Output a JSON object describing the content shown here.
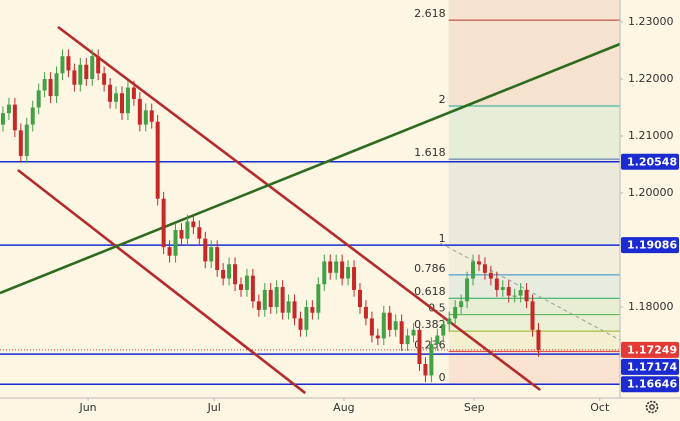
{
  "chart_data": {
    "type": "candlestick",
    "up_color": "#43a047",
    "down_color": "#c62828",
    "xlim": [
      -0.5,
      103.7
    ],
    "xticks": [
      {
        "value": 14.3,
        "label": "Jun"
      },
      {
        "value": 35.5,
        "label": "Jul"
      },
      {
        "value": 57.3,
        "label": "Aug"
      },
      {
        "value": 79.2,
        "label": "Sep"
      },
      {
        "value": 100.3,
        "label": "Oct"
      }
    ],
    "ylim": [
      1.16404,
      1.23386
    ],
    "yticks": [
      {
        "value": 1.23,
        "label": "1.23000"
      },
      {
        "value": 1.22,
        "label": "1.22000"
      },
      {
        "value": 1.21,
        "label": "1.21000"
      },
      {
        "value": 1.2,
        "label": "1.20000"
      },
      {
        "value": 1.18,
        "label": "1.18000"
      }
    ],
    "open": [
      1.212,
      1.214,
      1.2155,
      1.211,
      1.2065,
      1.212,
      1.215,
      1.218,
      1.22,
      1.217,
      1.221,
      1.224,
      1.2215,
      1.219,
      1.2225,
      1.22,
      1.224,
      1.221,
      1.219,
      1.216,
      1.2175,
      1.214,
      1.2185,
      1.2165,
      1.212,
      1.2145,
      1.2125,
      1.199,
      1.1905,
      1.189,
      1.1935,
      1.192,
      1.195,
      1.194,
      1.192,
      1.188,
      1.1905,
      1.1865,
      1.185,
      1.1875,
      1.184,
      1.183,
      1.1855,
      1.181,
      1.1795,
      1.183,
      1.18,
      1.1835,
      1.179,
      1.181,
      1.178,
      1.176,
      1.18,
      1.179,
      1.184,
      1.188,
      1.186,
      1.188,
      1.185,
      1.187,
      1.183,
      1.18,
      1.178,
      1.175,
      1.1745,
      1.179,
      1.176,
      1.1775,
      1.1735,
      1.175,
      1.176,
      1.17,
      1.168,
      1.1735,
      1.175,
      1.177,
      1.178,
      1.18,
      1.181,
      1.185,
      1.188,
      1.1875,
      1.186,
      1.185,
      1.183,
      1.1835,
      1.182,
      1.182,
      1.183,
      1.181,
      1.176
    ],
    "high": [
      1.2152,
      1.2167,
      1.2167,
      1.2122,
      1.2132,
      1.2162,
      1.2192,
      1.2212,
      1.2212,
      1.2222,
      1.2252,
      1.2252,
      1.2227,
      1.2237,
      1.2237,
      1.2252,
      1.2252,
      1.2222,
      1.2202,
      1.2187,
      1.2187,
      1.2197,
      1.2197,
      1.2177,
      1.2157,
      1.2157,
      1.2137,
      1.2002,
      1.1917,
      1.1947,
      1.1947,
      1.1962,
      1.1962,
      1.1952,
      1.1932,
      1.1917,
      1.1917,
      1.1877,
      1.1887,
      1.1887,
      1.1852,
      1.1867,
      1.1867,
      1.1822,
      1.1842,
      1.1842,
      1.1847,
      1.1847,
      1.1822,
      1.1822,
      1.1792,
      1.1812,
      1.1812,
      1.1852,
      1.1892,
      1.1892,
      1.1892,
      1.1892,
      1.1882,
      1.1882,
      1.1842,
      1.1812,
      1.1792,
      1.1762,
      1.1802,
      1.1802,
      1.1787,
      1.1787,
      1.1762,
      1.1772,
      1.1772,
      1.1712,
      1.1747,
      1.1762,
      1.1782,
      1.1792,
      1.1812,
      1.1822,
      1.1862,
      1.1892,
      1.1892,
      1.1887,
      1.1872,
      1.1862,
      1.1847,
      1.1847,
      1.1832,
      1.1842,
      1.1842,
      1.1822,
      1.1772
    ],
    "low": [
      1.2108,
      1.2128,
      1.2098,
      1.2053,
      1.2053,
      1.2108,
      1.2138,
      1.2168,
      1.2158,
      1.2158,
      1.2198,
      1.2203,
      1.2178,
      1.2178,
      1.2188,
      1.2188,
      1.2198,
      1.2178,
      1.2148,
      1.2148,
      1.2128,
      1.2128,
      1.2153,
      1.2108,
      1.2108,
      1.2113,
      1.1978,
      1.1893,
      1.1878,
      1.1878,
      1.1908,
      1.1908,
      1.1928,
      1.1908,
      1.1868,
      1.1868,
      1.1853,
      1.1838,
      1.1838,
      1.1828,
      1.1818,
      1.1818,
      1.1798,
      1.1783,
      1.1783,
      1.1788,
      1.1788,
      1.1778,
      1.1778,
      1.1768,
      1.1748,
      1.1748,
      1.1778,
      1.1778,
      1.1828,
      1.1848,
      1.1848,
      1.1838,
      1.1838,
      1.1818,
      1.1788,
      1.1768,
      1.1738,
      1.1733,
      1.1733,
      1.1748,
      1.1748,
      1.1723,
      1.1723,
      1.1738,
      1.1688,
      1.1668,
      1.1668,
      1.1723,
      1.1738,
      1.1758,
      1.1768,
      1.1788,
      1.1798,
      1.1838,
      1.1863,
      1.1848,
      1.1838,
      1.1818,
      1.1818,
      1.1808,
      1.1808,
      1.1808,
      1.1798,
      1.1748,
      1.17129
    ],
    "close": [
      1.214,
      1.2155,
      1.211,
      1.2065,
      1.212,
      1.215,
      1.218,
      1.22,
      1.217,
      1.221,
      1.224,
      1.2215,
      1.219,
      1.2225,
      1.22,
      1.224,
      1.221,
      1.219,
      1.216,
      1.2175,
      1.214,
      1.2185,
      1.2165,
      1.212,
      1.2145,
      1.2125,
      1.199,
      1.1905,
      1.189,
      1.1935,
      1.192,
      1.195,
      1.194,
      1.192,
      1.188,
      1.1905,
      1.1865,
      1.185,
      1.1875,
      1.184,
      1.183,
      1.1855,
      1.181,
      1.1795,
      1.183,
      1.18,
      1.1835,
      1.179,
      1.181,
      1.178,
      1.176,
      1.18,
      1.179,
      1.184,
      1.188,
      1.186,
      1.188,
      1.185,
      1.187,
      1.183,
      1.18,
      1.178,
      1.175,
      1.1745,
      1.179,
      1.176,
      1.1775,
      1.1735,
      1.175,
      1.176,
      1.17,
      1.168,
      1.1735,
      1.175,
      1.177,
      1.178,
      1.18,
      1.181,
      1.185,
      1.188,
      1.1875,
      1.186,
      1.185,
      1.183,
      1.1835,
      1.182,
      1.182,
      1.183,
      1.181,
      1.176,
      1.17249
    ],
    "last_price_color": "#e53935",
    "hlines": [
      {
        "value": 1.20548,
        "color": "#1a2bd1"
      },
      {
        "value": 1.19086,
        "color": "#1a2bd1"
      },
      {
        "value": 1.17174,
        "color": "#1a2bd1"
      },
      {
        "value": 1.16646,
        "color": "#1a2bd1"
      }
    ],
    "trend_lines": [
      {
        "x": [
          9.25,
          90.3
        ],
        "y": [
          1.22912,
          1.16544
        ],
        "color": "#b52a2a"
      },
      {
        "x": [
          2.5,
          50.8
        ],
        "y": [
          1.20404,
          1.16491
        ],
        "color": "#b52a2a"
      },
      {
        "x": [
          -0.5,
          103.7
        ],
        "y": [
          1.18246,
          1.22614
        ],
        "color": "#2e6b1f"
      },
      {
        "x": [
          73.5,
          103.7
        ],
        "y": [
          1.19123,
          1.17421
        ],
        "color": "#9e9e9e",
        "dashed": true
      }
    ],
    "fib_start": 74.9,
    "fib_levels": [
      {
        "label": "0",
        "value": 1.16646,
        "color": "#9e9e9e"
      },
      {
        "label": "0.236",
        "value": 1.17222,
        "color": "#e53935"
      },
      {
        "label": "0.382",
        "value": 1.17578,
        "color": "#9bb526"
      },
      {
        "label": "0.5",
        "value": 1.17866,
        "color": "#4caf50"
      },
      {
        "label": "0.618",
        "value": 1.18154,
        "color": "#26a65a"
      },
      {
        "label": "0.786",
        "value": 1.18564,
        "color": "#2c8fc9"
      },
      {
        "label": "1",
        "value": 1.19086,
        "color": "#9e9e9e"
      },
      {
        "label": "1.618",
        "value": 1.20594,
        "color": "#4a6fa5"
      },
      {
        "label": "2",
        "value": 1.21526,
        "color": "#22ab94"
      },
      {
        "label": "2.618",
        "value": 1.23034,
        "color": "#b2362f"
      }
    ]
  }
}
